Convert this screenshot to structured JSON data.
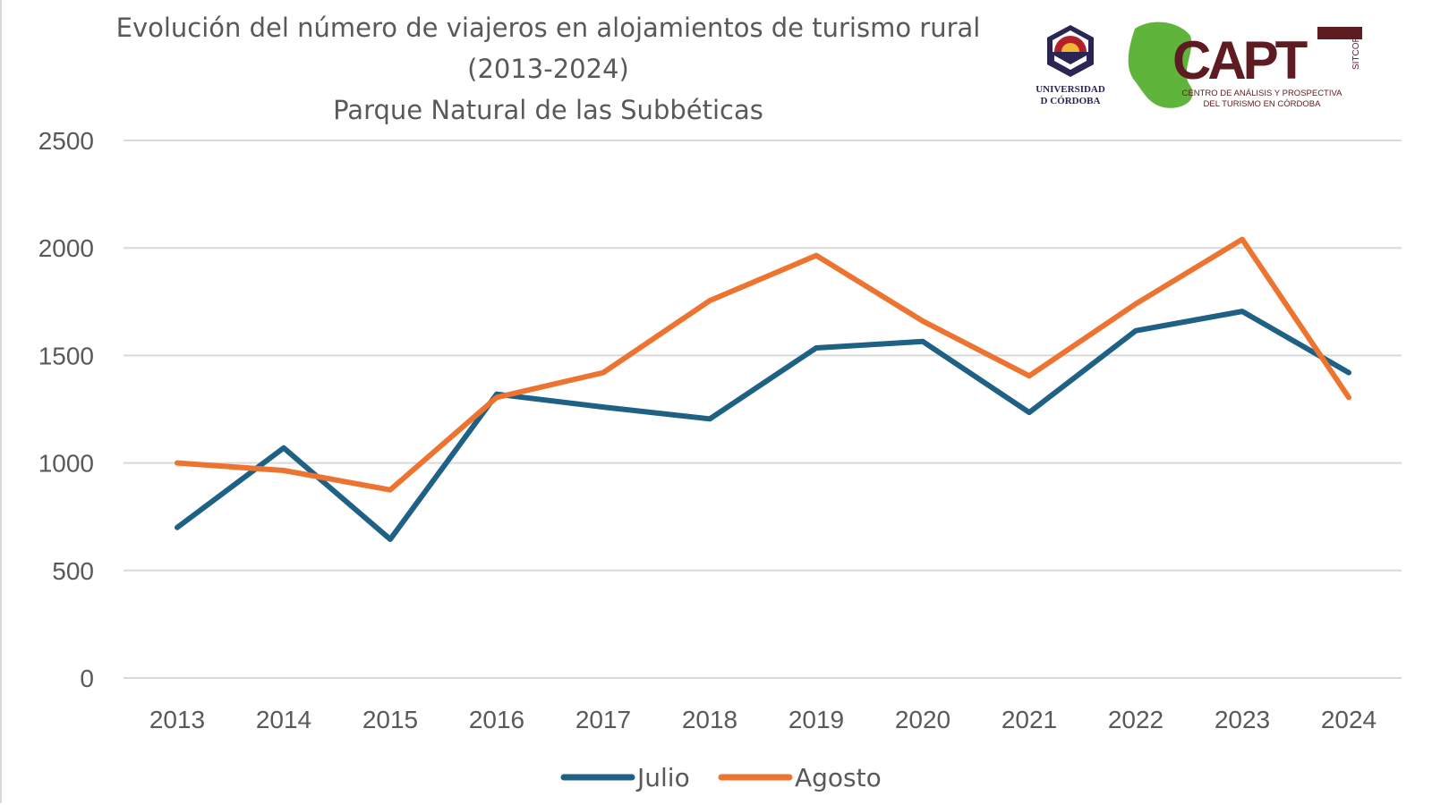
{
  "chart_data": {
    "type": "line",
    "title": "Evolución del número de viajeros en alojamientos de turismo rural",
    "title_line2": "(2013-2024)",
    "subtitle": "Parque Natural de las Subbéticas",
    "xlabel": "",
    "ylabel": "",
    "categories": [
      "2013",
      "2014",
      "2015",
      "2016",
      "2017",
      "2018",
      "2019",
      "2020",
      "2021",
      "2022",
      "2023",
      "2024"
    ],
    "series": [
      {
        "name": "Julio",
        "color": "#1f6184",
        "values": [
          700,
          1070,
          645,
          1320,
          1260,
          1205,
          1535,
          1565,
          1235,
          1615,
          1705,
          1420
        ]
      },
      {
        "name": "Agosto",
        "color": "#ed7430",
        "values": [
          1000,
          965,
          875,
          1305,
          1420,
          1755,
          1965,
          1660,
          1405,
          1740,
          2040,
          1305
        ]
      }
    ],
    "ylim": [
      0,
      2500
    ],
    "yticks": [
      0,
      500,
      1000,
      1500,
      2000,
      2500
    ],
    "grid": true,
    "legend": "bottom"
  },
  "logos": {
    "uco": "UNIVERSIDAD D CÓRDOBA",
    "capt": "CAPT",
    "capt_side": "SITCOR",
    "capt_caption": "CENTRO DE ANÁLISIS Y PROSPECTIVA DEL TURISMO EN CÓRDOBA"
  }
}
